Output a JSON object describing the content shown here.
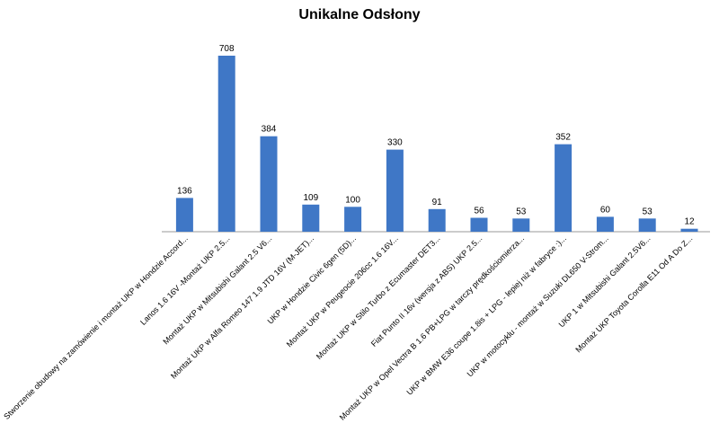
{
  "chart_data": {
    "type": "bar",
    "title": "Unikalne Odsłony",
    "xlabel": "",
    "ylabel": "",
    "ylim": [
      0,
      800
    ],
    "grid": false,
    "legend": "none",
    "bar_color": "#3f77c6",
    "categories": [
      "Stworzenie obudowy na zamówienie i montaż UKP w Hondzie Accord...",
      "Lanos 1.6 16V -Montaż UKP 2.5...",
      "Montaż UKP w Mitsubishi Galant 2.5 V6...",
      "Montaż UKP w Alfa Romeo 147 1.9 JTD 16V (M-JET)...",
      "UKP w Hondzie Civic 6gen (5D)...",
      "Montaż UKP w Peugeocie 206cc 1.6 16V...",
      "Montaż UKP w Stilo Turbo z Ecumaster DET3...",
      "Fiat Punto II 16v (wersja z ABS) UKP 2.5...",
      "Montaż UKP w Opel Vectra B 1.6 PB+LPG w tarczy prędkościomierza...",
      "UKP w BMW E36 coupe 1.8is + LPG - lepiej niż w fabryce :)...",
      "UKP w motocyklu - montaż w Suzuki DL650 V-Strom...",
      "UKP 1 w Mitsubishi Galant 2.5V6...",
      "Montaż UKP Toyota Corolla E11 Od A Do Z..."
    ],
    "values": [
      136,
      708,
      384,
      109,
      100,
      330,
      91,
      56,
      53,
      352,
      60,
      53,
      12
    ]
  }
}
